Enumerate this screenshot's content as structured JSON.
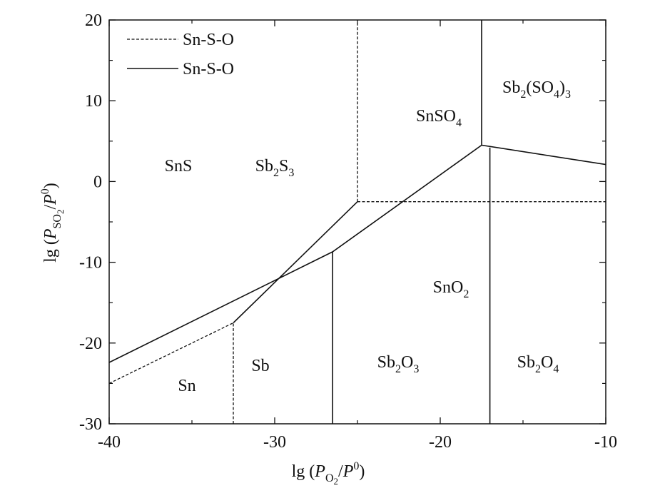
{
  "chart_data": {
    "type": "line",
    "x_label": [
      "lg (",
      "P",
      "O",
      "2",
      "/",
      "P",
      "0",
      ")"
    ],
    "y_label": [
      "lg (",
      "P",
      "SO",
      "2",
      "/",
      "P",
      "0",
      ")"
    ],
    "xlim": [
      -40,
      -10
    ],
    "ylim": [
      -30,
      20
    ],
    "xticks": [
      -40,
      -30,
      -20,
      -10
    ],
    "yticks": [
      -30,
      -20,
      -10,
      0,
      10,
      20
    ],
    "xminor": [
      -35,
      -25,
      -15
    ],
    "yminor": [
      -25,
      -15,
      -5,
      5,
      15
    ],
    "legend": "upper left",
    "series": [
      {
        "name": "Sn-S-O",
        "color": "#111111",
        "dashed": true,
        "x": [
          -40,
          -32.5,
          null,
          -32.5,
          -32.5,
          null,
          -25,
          -25,
          null,
          -25,
          -10
        ],
        "y": [
          -25.0,
          -17.5,
          null,
          -30,
          -17.5,
          null,
          -2.5,
          20,
          null,
          -2.5,
          -2.5
        ]
      },
      {
        "name": "Sn-S-O",
        "color": "#111111",
        "dashed": false,
        "x": [
          -40,
          -26.5,
          -17.5,
          -10,
          null,
          -32.5,
          -25,
          null,
          -17.5,
          -17.5,
          null,
          -26.5,
          -26.5,
          null,
          -17.0,
          -17.0
        ],
        "y": [
          -22.4,
          -8.7,
          4.5,
          2.1,
          null,
          -17.5,
          -2.5,
          null,
          4.5,
          20,
          null,
          -30,
          -8.7,
          null,
          -30,
          4.2
        ]
      }
    ],
    "regions": [
      [
        "SnS"
      ],
      [
        "Sb",
        "2",
        "S",
        "3"
      ],
      [
        "SnSO",
        "4"
      ],
      [
        "Sb",
        "2",
        "(SO",
        "4",
        ")",
        "3"
      ],
      [
        "SnO",
        "2"
      ],
      [
        "Sn"
      ],
      [
        "Sb"
      ],
      [
        "Sb",
        "2",
        "O",
        "3"
      ],
      [
        "Sb",
        "2",
        "O",
        "4"
      ]
    ]
  }
}
